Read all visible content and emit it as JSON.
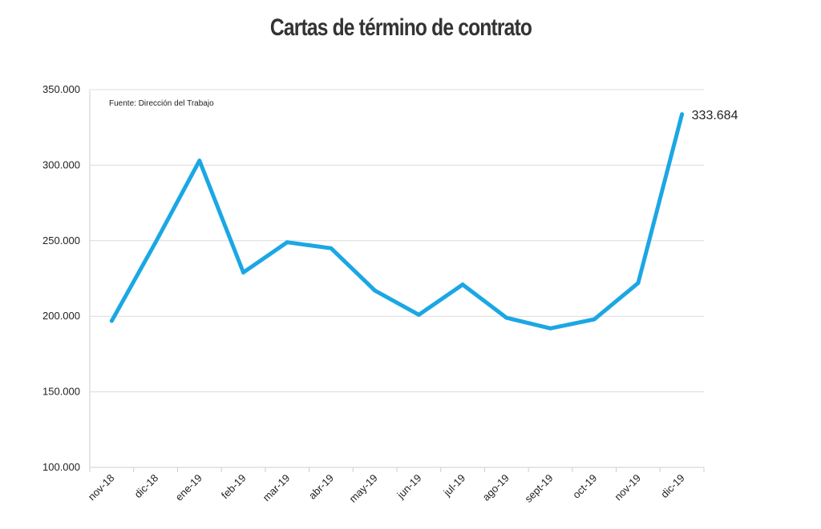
{
  "chart_data": {
    "type": "line",
    "title": "Cartas de término de contrato",
    "source_note": "Fuente: Dirección del Trabajo",
    "xlabel": "",
    "ylabel": "",
    "categories": [
      "nov-18",
      "dic-18",
      "ene-19",
      "feb-19",
      "mar-19",
      "abr-19",
      "may-19",
      "jun-19",
      "jul-19",
      "ago-19",
      "sept-19",
      "oct-19",
      "nov-19",
      "dic-19"
    ],
    "series": [
      {
        "name": "",
        "color": "#1BA7E4",
        "values": [
          197000,
          249000,
          303000,
          229000,
          249000,
          245000,
          217000,
          201000,
          221000,
          199000,
          192000,
          198000,
          222000,
          333684
        ]
      }
    ],
    "ylim": [
      100000,
      350000
    ],
    "yticks": [
      100000,
      150000,
      200000,
      250000,
      300000,
      350000
    ],
    "ytick_labels": [
      "100.000",
      "150.000",
      "200.000",
      "250.000",
      "300.000",
      "350.000"
    ],
    "annotations": [
      {
        "category": "dic-19",
        "text": "333.684"
      }
    ],
    "grid": true,
    "legend": "none"
  }
}
